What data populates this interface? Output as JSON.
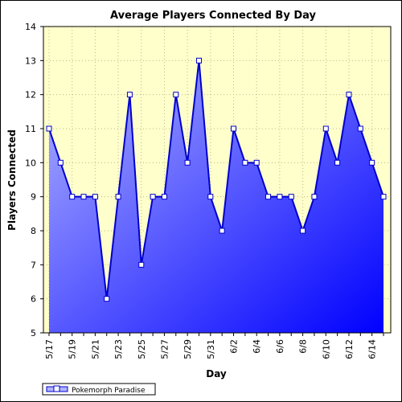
{
  "chart_data": {
    "type": "area",
    "title": "Average Players Connected By Day",
    "xlabel": "Day",
    "ylabel": "Players Connected",
    "ylim": [
      5,
      14
    ],
    "y_ticks": [
      "5",
      "6",
      "7",
      "8",
      "9",
      "10",
      "11",
      "12",
      "13",
      "14"
    ],
    "x_tick_labels": [
      "5/17",
      "5/19",
      "5/21",
      "5/23",
      "5/25",
      "5/27",
      "5/29",
      "5/31",
      "6/2",
      "6/4",
      "6/6",
      "6/8",
      "6/10",
      "6/12",
      "6/14"
    ],
    "x": [
      "5/17",
      "5/18",
      "5/19",
      "5/20",
      "5/21",
      "5/22",
      "5/23",
      "5/24",
      "5/25",
      "5/26",
      "5/27",
      "5/28",
      "5/29",
      "5/30",
      "5/31",
      "6/1",
      "6/2",
      "6/3",
      "6/4",
      "6/5",
      "6/6",
      "6/7",
      "6/8",
      "6/9",
      "6/10",
      "6/11",
      "6/12",
      "6/13",
      "6/14",
      "6/15"
    ],
    "series": [
      {
        "name": "Pokemorph Paradise",
        "values": [
          11,
          10,
          9,
          9,
          9,
          6,
          9,
          12,
          7,
          9,
          9,
          12,
          10,
          13,
          9,
          8,
          11,
          10,
          10,
          9,
          9,
          9,
          8,
          9,
          11,
          10,
          12,
          11,
          10,
          9
        ]
      }
    ],
    "grid": true,
    "legend": "bottom-left",
    "colors": {
      "background": "#ffffcc",
      "line": "#0000cc",
      "fill_start": "#b0b4ff",
      "fill_end": "#0000ff",
      "marker_fill": "#ffffff"
    }
  }
}
